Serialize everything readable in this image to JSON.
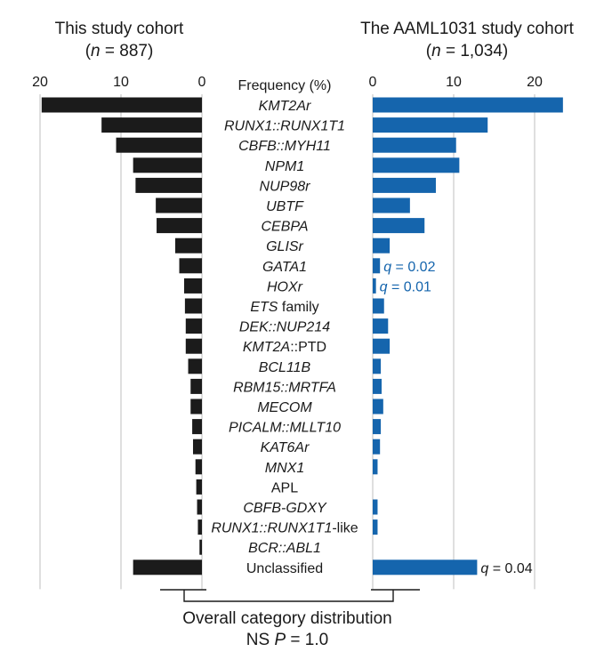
{
  "colors": {
    "left_bar": "#1b1b1b",
    "right_bar": "#1565ad",
    "annotation_blue": "#1565ad",
    "grid": "#bfbfbf"
  },
  "chart_data": {
    "type": "bar",
    "orientation": "horizontal-butterfly",
    "axis_label": "Frequency (%)",
    "categories": [
      {
        "label": "KMT2Ar",
        "parts": [
          [
            "KMT2A",
            true
          ],
          [
            "r",
            true
          ]
        ]
      },
      {
        "label": "RUNX1::RUNX1T1",
        "parts": [
          [
            "RUNX1::RUNX1T1",
            true
          ]
        ]
      },
      {
        "label": "CBFB::MYH11",
        "parts": [
          [
            "CBFB::MYH11",
            true
          ]
        ]
      },
      {
        "label": "NPM1",
        "parts": [
          [
            "NPM1",
            true
          ]
        ]
      },
      {
        "label": "NUP98r",
        "parts": [
          [
            "NUP98r",
            true
          ]
        ]
      },
      {
        "label": "UBTF",
        "parts": [
          [
            "UBTF",
            true
          ]
        ]
      },
      {
        "label": "CEBPA",
        "parts": [
          [
            "CEBPA",
            true
          ]
        ]
      },
      {
        "label": "GLISr",
        "parts": [
          [
            "GLISr",
            true
          ]
        ]
      },
      {
        "label": "GATA1",
        "parts": [
          [
            "GATA1",
            true
          ]
        ]
      },
      {
        "label": "HOXr",
        "parts": [
          [
            "HOXr",
            true
          ]
        ]
      },
      {
        "label": "ETS family",
        "parts": [
          [
            "ETS",
            true
          ],
          [
            " family",
            false
          ]
        ]
      },
      {
        "label": "DEK::NUP214",
        "parts": [
          [
            "DEK::NUP214",
            true
          ]
        ]
      },
      {
        "label": "KMT2A::PTD",
        "parts": [
          [
            "KMT2A",
            true
          ],
          [
            "::PTD",
            false
          ]
        ]
      },
      {
        "label": "BCL11B",
        "parts": [
          [
            "BCL11B",
            true
          ]
        ]
      },
      {
        "label": "RBM15::MRTFA",
        "parts": [
          [
            "RBM15::MRTFA",
            true
          ]
        ]
      },
      {
        "label": "MECOM",
        "parts": [
          [
            "MECOM",
            true
          ]
        ]
      },
      {
        "label": "PICALM::MLLT10",
        "parts": [
          [
            "PICALM::MLLT10",
            true
          ]
        ]
      },
      {
        "label": "KAT6Ar",
        "parts": [
          [
            "KAT6Ar",
            true
          ]
        ]
      },
      {
        "label": "MNX1",
        "parts": [
          [
            "MNX1",
            true
          ]
        ]
      },
      {
        "label": "APL",
        "parts": [
          [
            "APL",
            false
          ]
        ]
      },
      {
        "label": "CBFB-GDXY",
        "parts": [
          [
            "CBFB-GDXY",
            true
          ]
        ]
      },
      {
        "label": "RUNX1::RUNX1T1-like",
        "parts": [
          [
            "RUNX1::RUNX1T1",
            true
          ],
          [
            "-like",
            false
          ]
        ]
      },
      {
        "label": "BCR::ABL1",
        "parts": [
          [
            "BCR::ABL1",
            true
          ]
        ]
      },
      {
        "label": "Unclassified",
        "parts": [
          [
            "Unclassified",
            false
          ]
        ]
      }
    ],
    "left": {
      "title_line1": "This study cohort",
      "title_line2_parts": [
        [
          "(",
          false
        ],
        [
          "n",
          true
        ],
        [
          " = 887)",
          false
        ]
      ],
      "xlim": [
        0,
        20
      ],
      "ticks": [
        0,
        10,
        20
      ],
      "tick_labels": [
        "0",
        "10",
        "20"
      ],
      "values": [
        19.8,
        12.4,
        10.6,
        8.5,
        8.2,
        5.7,
        5.6,
        3.3,
        2.8,
        2.2,
        2.1,
        2.0,
        2.0,
        1.7,
        1.4,
        1.4,
        1.2,
        1.1,
        0.8,
        0.7,
        0.6,
        0.5,
        0.3,
        8.5
      ]
    },
    "right": {
      "title_line1": "The AAML1031 study cohort",
      "title_line2_parts": [
        [
          "(",
          false
        ],
        [
          "n",
          true
        ],
        [
          " = 1,034)",
          false
        ]
      ],
      "xlim": [
        0,
        20
      ],
      "ticks": [
        0,
        10,
        20
      ],
      "tick_labels": [
        "0",
        "10",
        "20"
      ],
      "values": [
        23.5,
        14.2,
        10.3,
        10.7,
        7.8,
        4.6,
        6.4,
        2.1,
        0.9,
        0.4,
        1.4,
        1.9,
        2.1,
        1.0,
        1.1,
        1.3,
        1.0,
        0.9,
        0.6,
        0,
        0.6,
        0.6,
        0,
        12.9
      ],
      "annotations": [
        {
          "category": "GATA1",
          "text": "q = 0.02",
          "color": "#1565ad"
        },
        {
          "category": "HOXr",
          "text": "q = 0.01",
          "color": "#1565ad"
        },
        {
          "category": "Unclassified",
          "text": "q = 0.04",
          "color": "#1a1a1a"
        }
      ]
    },
    "bottom_label_line1": "Overall category distribution",
    "bottom_label_line2_parts": [
      [
        "NS  ",
        false
      ],
      [
        "P",
        true
      ],
      [
        " = 1.0",
        false
      ]
    ]
  }
}
